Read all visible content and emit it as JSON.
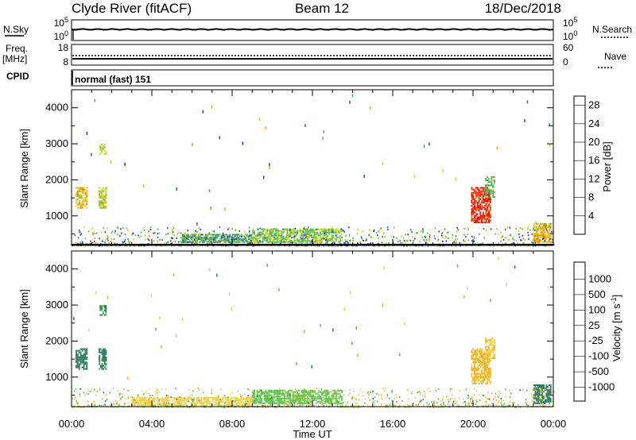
{
  "header": {
    "radar": "Clyde River (fitACF)",
    "beam": "Beam 12",
    "date": "18/Dec/2018"
  },
  "colors": {
    "power_scale": [
      "#2424f2",
      "#1e5aa8",
      "#2e7d6a",
      "#4fa86e",
      "#5ec43c",
      "#c9d830",
      "#f0b400",
      "#f07800",
      "#ee3a10",
      "#e00000"
    ],
    "velocity_scale": [
      "#1a33c9",
      "#1f66b0",
      "#2e7d5e",
      "#5fc443",
      "#c8c8c8",
      "#f2d24a",
      "#f2b21c",
      "#f27a00",
      "#ee3c10",
      "#e00000"
    ],
    "trace": "#000000",
    "frame": "#000000"
  },
  "panels": {
    "nsky": {
      "left_label": "N.Sky",
      "left_ticks": [
        "10^5",
        "10^0"
      ],
      "right_label": "N.Search",
      "right_ticks": [
        "10^5",
        "10^0"
      ]
    },
    "freq": {
      "left_label_1": "Freq.",
      "left_label_2": "[MHz]",
      "left_ticks": [
        "18",
        "8"
      ],
      "right_label": "Nave",
      "right_ticks": [
        "60",
        "0"
      ]
    },
    "cpid": {
      "label": "CPID",
      "value": "normal (fast) 151"
    }
  },
  "chart_data": [
    {
      "type": "heatmap",
      "title": "Power",
      "ylabel": "Slant Range [km]",
      "xlabel": "",
      "x_ticks": [
        "00:00",
        "04:00",
        "08:00",
        "12:00",
        "16:00",
        "20:00",
        "00:00"
      ],
      "y_ticks": [
        1000,
        2000,
        3000,
        4000
      ],
      "ylim": [
        180,
        4500
      ],
      "xlim_hours": [
        0,
        24
      ],
      "colorbar_label": "Power [dB]",
      "colorbar_ticks": [
        4,
        8,
        12,
        16,
        20,
        24,
        28
      ],
      "colorbar_range": [
        0,
        30
      ],
      "echo_regions": [
        {
          "t": [
            0.2,
            0.8
          ],
          "r": [
            1200,
            1800
          ],
          "value": 18
        },
        {
          "t": [
            1.35,
            1.75
          ],
          "r": [
            1200,
            1800
          ],
          "value": 16
        },
        {
          "t": [
            1.4,
            1.75
          ],
          "r": [
            2700,
            3000
          ],
          "value": 16
        },
        {
          "t": [
            19.9,
            20.9
          ],
          "r": [
            800,
            1800
          ],
          "value": 26
        },
        {
          "t": [
            20.6,
            21.1
          ],
          "r": [
            1500,
            2100
          ],
          "value": 12
        },
        {
          "t": [
            23.0,
            23.9
          ],
          "r": [
            250,
            800
          ],
          "value": 20
        },
        {
          "t": [
            9.0,
            13.5
          ],
          "r": [
            250,
            650
          ],
          "value": 14
        },
        {
          "t": [
            5.5,
            9.0
          ],
          "r": [
            250,
            500
          ],
          "value": 10
        }
      ]
    },
    {
      "type": "heatmap",
      "title": "Velocity",
      "ylabel": "Slant Range [km]",
      "xlabel": "Time UT",
      "x_ticks": [
        "00:00",
        "04:00",
        "08:00",
        "12:00",
        "16:00",
        "20:00",
        "00:00"
      ],
      "y_ticks": [
        1000,
        2000,
        3000,
        4000
      ],
      "ylim": [
        180,
        4500
      ],
      "xlim_hours": [
        0,
        24
      ],
      "colorbar_label": "Velocity [m s^-1]",
      "colorbar_ticks": [
        "1000",
        "500",
        "100",
        "25",
        "-25",
        "-100",
        "-500",
        "-1000"
      ],
      "echo_regions": [
        {
          "t": [
            0.2,
            0.8
          ],
          "r": [
            1200,
            1800
          ],
          "value": 300
        },
        {
          "t": [
            1.35,
            1.75
          ],
          "r": [
            1200,
            1800
          ],
          "value": 200
        },
        {
          "t": [
            1.4,
            1.75
          ],
          "r": [
            2700,
            3000
          ],
          "value": 150
        },
        {
          "t": [
            19.9,
            20.9
          ],
          "r": [
            800,
            1800
          ],
          "value": -150
        },
        {
          "t": [
            20.6,
            21.1
          ],
          "r": [
            1500,
            2100
          ],
          "value": -80
        },
        {
          "t": [
            23.0,
            23.9
          ],
          "r": [
            250,
            800
          ],
          "value": 300
        },
        {
          "t": [
            9.0,
            13.5
          ],
          "r": [
            250,
            650
          ],
          "value": 60
        },
        {
          "t": [
            3.0,
            9.0
          ],
          "r": [
            200,
            450
          ],
          "value": -60
        }
      ]
    }
  ]
}
